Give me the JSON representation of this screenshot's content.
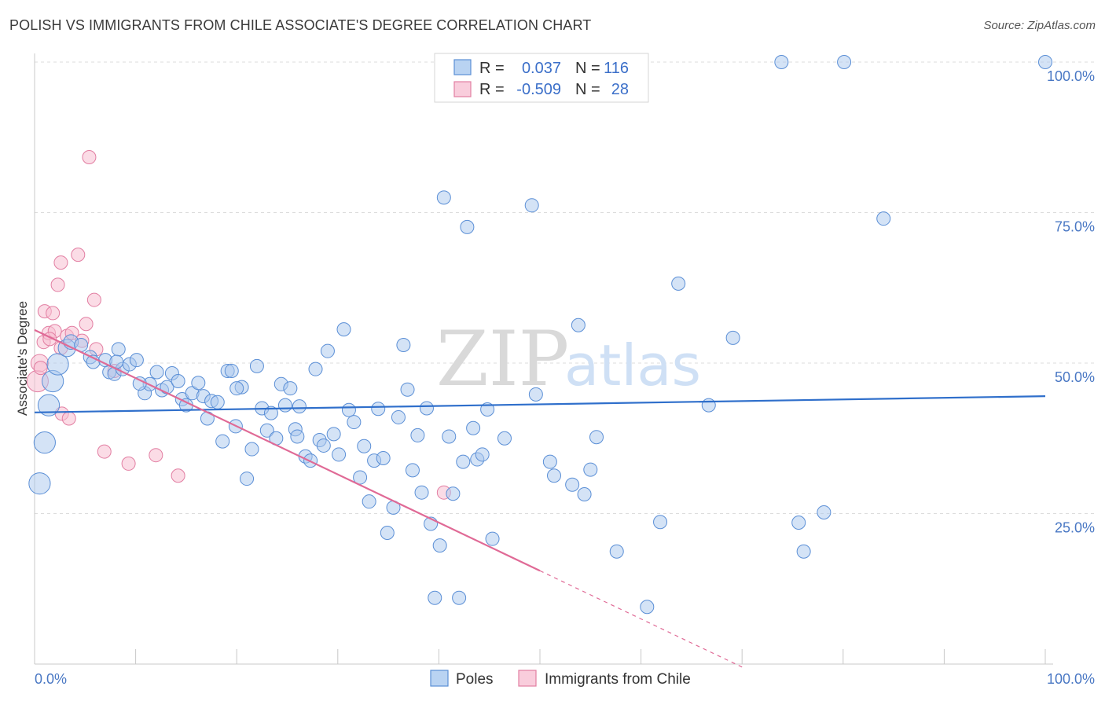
{
  "header": {
    "title": "POLISH VS IMMIGRANTS FROM CHILE ASSOCIATE'S DEGREE CORRELATION CHART",
    "source": "Source: ZipAtlas.com"
  },
  "legend": {
    "rows": [
      {
        "r_label": "R =",
        "r_value": "0.037",
        "n_label": "N =",
        "n_value": "116"
      },
      {
        "r_label": "R =",
        "r_value": "-0.509",
        "n_label": "N =",
        "n_value": "28"
      }
    ]
  },
  "watermark": {
    "zip": "ZIP",
    "atlas": "atlas"
  },
  "colors": {
    "poles_fill": "#a9c8ee",
    "poles_stroke": "#5b8fd6",
    "poles_line": "#2f6fcb",
    "chile_fill": "#f7bfd1",
    "chile_stroke": "#e27ea2",
    "chile_line": "#e06a96",
    "grid": "#dcdcdc",
    "tick_label": "#4a78c4"
  },
  "chart_data": {
    "type": "scatter",
    "title": "POLISH VS IMMIGRANTS FROM CHILE ASSOCIATE'S DEGREE CORRELATION CHART",
    "xlabel": "",
    "ylabel": "Associate's Degree",
    "xlim": [
      0,
      100
    ],
    "ylim": [
      0,
      100
    ],
    "x_tick_labels": [
      "0.0%",
      "100.0%"
    ],
    "y_ticks": [
      25,
      50,
      75,
      100
    ],
    "y_tick_labels": [
      "25.0%",
      "50.0%",
      "75.0%",
      "100.0%"
    ],
    "grid": true,
    "legend_placement": "top-center",
    "series": [
      {
        "name": "Poles",
        "trend": {
          "x": [
            0,
            100
          ],
          "y": [
            41.8,
            44.5
          ]
        },
        "points": [
          [
            0.5,
            30.0,
            1.6
          ],
          [
            1.0,
            36.8,
            1.6
          ],
          [
            1.4,
            43.0,
            1.6
          ],
          [
            1.8,
            47.0,
            1.6
          ],
          [
            2.3,
            49.8,
            1.6
          ],
          [
            3.2,
            52.5,
            1.3
          ],
          [
            3.6,
            53.5,
            1.1
          ],
          [
            4.6,
            53.0,
            1.0
          ],
          [
            5.5,
            51.0,
            1.0
          ],
          [
            5.8,
            50.2,
            1.0
          ],
          [
            7.0,
            50.5,
            1.0
          ],
          [
            7.4,
            48.5,
            1.0
          ],
          [
            7.9,
            48.2,
            1.0
          ],
          [
            8.3,
            52.3,
            1.0
          ],
          [
            8.7,
            49.0,
            1.0
          ],
          [
            9.4,
            49.8,
            1.0
          ],
          [
            10.1,
            50.5,
            1.0
          ],
          [
            10.9,
            45.0,
            1.0
          ],
          [
            11.4,
            46.5,
            1.0
          ],
          [
            12.1,
            48.5,
            1.0
          ],
          [
            12.6,
            45.5,
            1.0
          ],
          [
            13.1,
            46.0,
            1.0
          ],
          [
            13.6,
            48.3,
            1.0
          ],
          [
            14.2,
            47.0,
            1.0
          ],
          [
            14.6,
            44.0,
            1.0
          ],
          [
            15.0,
            43.0,
            1.0
          ],
          [
            15.6,
            45.0,
            1.0
          ],
          [
            16.2,
            46.7,
            1.0
          ],
          [
            16.7,
            44.5,
            1.0
          ],
          [
            17.1,
            40.8,
            1.0
          ],
          [
            17.5,
            43.7,
            1.0
          ],
          [
            18.1,
            43.5,
            1.0
          ],
          [
            18.6,
            37.0,
            1.0
          ],
          [
            19.1,
            48.7,
            1.0
          ],
          [
            19.5,
            48.7,
            1.0
          ],
          [
            19.9,
            39.5,
            1.0
          ],
          [
            20.5,
            46.0,
            1.0
          ],
          [
            21.0,
            30.8,
            1.0
          ],
          [
            21.5,
            35.7,
            1.0
          ],
          [
            22.0,
            49.5,
            1.0
          ],
          [
            22.5,
            42.5,
            1.0
          ],
          [
            23.0,
            38.8,
            1.0
          ],
          [
            23.4,
            41.7,
            1.0
          ],
          [
            23.9,
            37.5,
            1.0
          ],
          [
            24.4,
            46.5,
            1.0
          ],
          [
            24.8,
            43.0,
            1.0
          ],
          [
            25.3,
            45.8,
            1.0
          ],
          [
            25.8,
            39.0,
            1.0
          ],
          [
            26.2,
            42.8,
            1.0
          ],
          [
            26.8,
            34.5,
            1.0
          ],
          [
            27.3,
            33.8,
            1.0
          ],
          [
            27.8,
            49.0,
            1.0
          ],
          [
            28.2,
            37.2,
            1.0
          ],
          [
            28.6,
            36.3,
            1.0
          ],
          [
            29.0,
            52.0,
            1.0
          ],
          [
            29.6,
            38.2,
            1.0
          ],
          [
            30.1,
            34.8,
            1.0
          ],
          [
            30.6,
            55.6,
            1.0
          ],
          [
            31.1,
            42.2,
            1.0
          ],
          [
            31.6,
            40.2,
            1.0
          ],
          [
            32.2,
            31.0,
            1.0
          ],
          [
            32.6,
            36.2,
            1.0
          ],
          [
            33.1,
            27.0,
            1.0
          ],
          [
            33.6,
            33.8,
            1.0
          ],
          [
            34.0,
            42.4,
            1.0
          ],
          [
            34.5,
            34.2,
            1.0
          ],
          [
            34.9,
            21.8,
            1.0
          ],
          [
            35.5,
            26.0,
            1.0
          ],
          [
            36.0,
            41.0,
            1.0
          ],
          [
            36.5,
            53.0,
            1.0
          ],
          [
            36.9,
            45.6,
            1.0
          ],
          [
            37.4,
            32.2,
            1.0
          ],
          [
            37.9,
            38.0,
            1.0
          ],
          [
            38.3,
            28.5,
            1.0
          ],
          [
            38.8,
            42.5,
            1.0
          ],
          [
            39.2,
            23.3,
            1.0
          ],
          [
            39.6,
            11.0,
            1.0
          ],
          [
            40.1,
            19.7,
            1.0
          ],
          [
            40.5,
            77.5,
            1.0
          ],
          [
            41.0,
            37.8,
            1.0
          ],
          [
            41.4,
            28.3,
            1.0
          ],
          [
            42.0,
            11.0,
            1.0
          ],
          [
            42.4,
            33.6,
            1.0
          ],
          [
            42.8,
            72.6,
            1.0
          ],
          [
            43.4,
            39.2,
            1.0
          ],
          [
            43.8,
            34.0,
            1.0
          ],
          [
            44.3,
            34.8,
            1.0
          ],
          [
            44.8,
            42.3,
            1.0
          ],
          [
            45.3,
            20.8,
            1.0
          ],
          [
            46.5,
            37.5,
            1.0
          ],
          [
            49.2,
            76.2,
            1.0
          ],
          [
            49.6,
            44.8,
            1.0
          ],
          [
            51.0,
            33.6,
            1.0
          ],
          [
            51.4,
            31.3,
            1.0
          ],
          [
            53.2,
            29.8,
            1.0
          ],
          [
            53.8,
            56.3,
            1.0
          ],
          [
            54.4,
            28.2,
            1.0
          ],
          [
            55.0,
            32.3,
            1.0
          ],
          [
            55.6,
            37.7,
            1.0
          ],
          [
            57.6,
            18.7,
            1.0
          ],
          [
            60.6,
            9.5,
            1.0
          ],
          [
            61.9,
            23.6,
            1.0
          ],
          [
            63.7,
            63.2,
            1.0
          ],
          [
            66.7,
            43.0,
            1.0
          ],
          [
            69.1,
            54.2,
            1.0
          ],
          [
            75.6,
            23.5,
            1.0
          ],
          [
            76.1,
            18.7,
            1.0
          ],
          [
            78.1,
            25.2,
            1.0
          ],
          [
            73.9,
            100.0,
            1.0
          ],
          [
            80.1,
            100.0,
            1.0
          ],
          [
            84.0,
            74.0,
            1.0
          ],
          [
            100.0,
            100.0,
            1.0
          ],
          [
            8.1,
            50.2,
            1.0
          ],
          [
            10.4,
            46.6,
            1.0
          ],
          [
            20.0,
            45.8,
            1.0
          ],
          [
            26.0,
            37.8,
            1.0
          ]
        ]
      },
      {
        "name": "Immigrants from Chile",
        "trend": {
          "x": [
            0,
            50
          ],
          "y": [
            55.5,
            15.5
          ]
        },
        "trend_dashed": {
          "x": [
            50,
            70
          ],
          "y": [
            15.5,
            -0.5
          ]
        },
        "points": [
          [
            0.3,
            47.0,
            1.6
          ],
          [
            0.5,
            50.0,
            1.3
          ],
          [
            0.6,
            49.2,
            1.0
          ],
          [
            0.9,
            53.5,
            1.0
          ],
          [
            1.0,
            58.6,
            1.0
          ],
          [
            1.4,
            55.0,
            1.0
          ],
          [
            1.8,
            58.3,
            1.0
          ],
          [
            2.0,
            55.3,
            1.0
          ],
          [
            2.3,
            63.0,
            1.0
          ],
          [
            2.6,
            66.7,
            1.0
          ],
          [
            2.6,
            52.5,
            1.0
          ],
          [
            2.7,
            41.6,
            1.0
          ],
          [
            3.2,
            54.5,
            1.0
          ],
          [
            3.4,
            40.8,
            1.0
          ],
          [
            3.7,
            55.0,
            1.0
          ],
          [
            4.3,
            68.0,
            1.0
          ],
          [
            5.1,
            56.5,
            1.0
          ],
          [
            5.4,
            84.2,
            1.0
          ],
          [
            5.9,
            60.5,
            1.0
          ],
          [
            6.1,
            52.3,
            1.0
          ],
          [
            6.9,
            35.3,
            1.0
          ],
          [
            7.9,
            48.7,
            1.0
          ],
          [
            9.3,
            33.3,
            1.0
          ],
          [
            12.0,
            34.7,
            1.0
          ],
          [
            14.2,
            31.3,
            1.0
          ],
          [
            40.5,
            28.5,
            1.0
          ],
          [
            4.7,
            53.7,
            1.0
          ],
          [
            1.5,
            54.0,
            1.0
          ]
        ]
      }
    ]
  },
  "bottom_legend": {
    "items": [
      {
        "label": "Poles"
      },
      {
        "label": "Immigrants from Chile"
      }
    ]
  }
}
